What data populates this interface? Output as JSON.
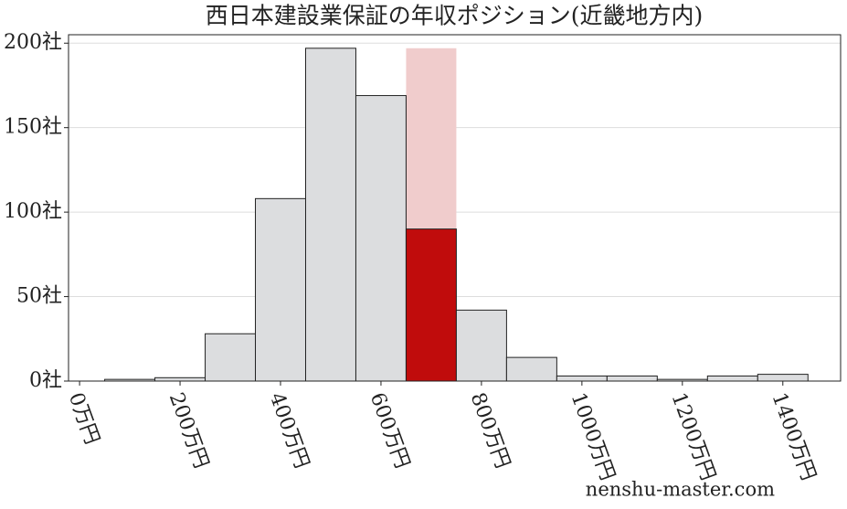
{
  "chart_data": {
    "type": "histogram",
    "title": "西日本建設業保証の年収ポジション(近畿地方内)",
    "bins": [
      50,
      150,
      250,
      350,
      450,
      550,
      650,
      750,
      850,
      950,
      1050,
      1150,
      1250,
      1350,
      1450
    ],
    "values": [
      1,
      2,
      28,
      108,
      197,
      169,
      90,
      42,
      14,
      3,
      3,
      1,
      3,
      4
    ],
    "color": "#dcdddf",
    "highlight": {
      "bins": [
        650,
        750
      ],
      "values": [
        90
      ],
      "color": "#c00c0c",
      "band_value": 197,
      "band_color": "#f0cccc"
    },
    "xlim": [
      -22,
      1515
    ],
    "ylim": [
      0,
      205
    ],
    "xticks": [
      {
        "value": 0,
        "label": "0万円"
      },
      {
        "value": 200,
        "label": "200万円"
      },
      {
        "value": 400,
        "label": "400万円"
      },
      {
        "value": 600,
        "label": "600万円"
      },
      {
        "value": 800,
        "label": "800万円"
      },
      {
        "value": 1000,
        "label": "1000万円"
      },
      {
        "value": 1200,
        "label": "1200万円"
      },
      {
        "value": 1400,
        "label": "1400万円"
      }
    ],
    "yticks": [
      {
        "value": 0,
        "label": "0社"
      },
      {
        "value": 50,
        "label": "50社"
      },
      {
        "value": 100,
        "label": "100社"
      },
      {
        "value": 150,
        "label": "150社"
      },
      {
        "value": 200,
        "label": "200社"
      }
    ],
    "grid": true,
    "watermark": "nenshu-master.com"
  }
}
